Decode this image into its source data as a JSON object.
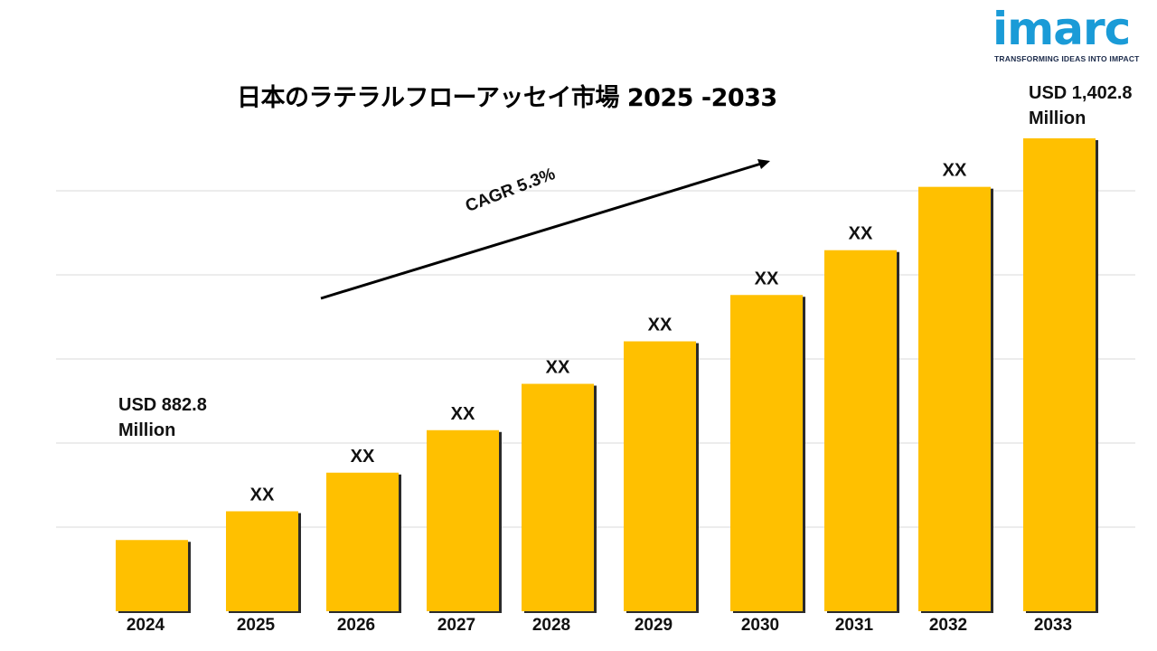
{
  "logo": {
    "name": "imarc",
    "tagline": "TRANSFORMING IDEAS INTO IMPACT"
  },
  "chart_data": {
    "type": "bar",
    "title": "日本のラテラルフローアッセイ市場 2025 -2033",
    "categories": [
      "2024",
      "2025",
      "2026",
      "2027",
      "2028",
      "2029",
      "2030",
      "2031",
      "2032",
      "2033"
    ],
    "values": [
      882.8,
      920,
      970,
      1025,
      1085,
      1140,
      1200,
      1258,
      1340,
      1402.8
    ],
    "value_labels": [
      "",
      "XX",
      "XX",
      "XX",
      "XX",
      "XX",
      "XX",
      "XX",
      "XX",
      ""
    ],
    "first_label": {
      "line1": "USD 882.8",
      "line2": "Million"
    },
    "last_label": {
      "line1": "USD 1,402.8",
      "line2": "Million"
    },
    "cagr": "CAGR 5.3%",
    "grid": true,
    "axis_values_shown": false,
    "colors": {
      "bar": "#FFC000",
      "bar_shadow": "#2b2b2b",
      "grid": "#d9d9d9",
      "arrow": "#000000"
    }
  }
}
